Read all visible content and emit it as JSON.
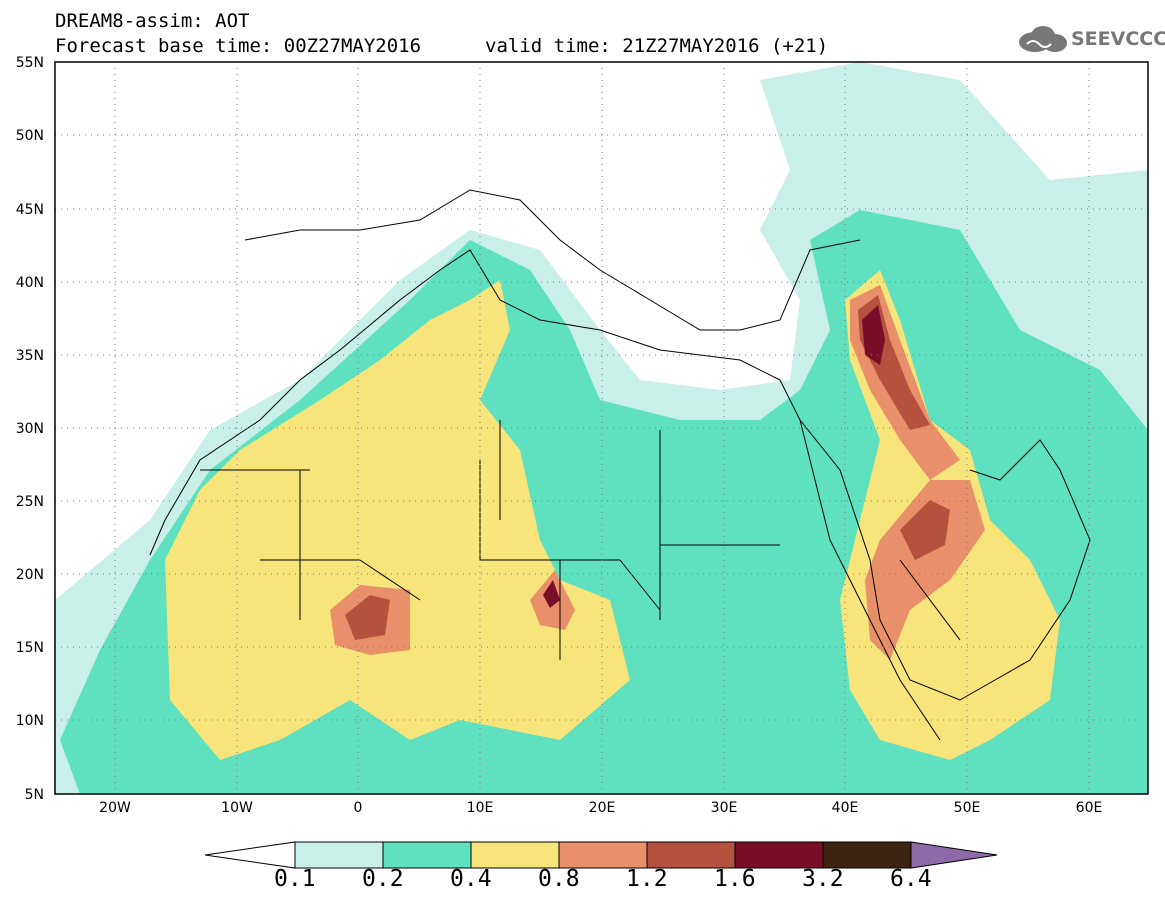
{
  "header": {
    "title": "DREAM8-assim: AOT",
    "base_time": "Forecast base time: 00Z27MAY2016",
    "valid_time": "valid time: 21Z27MAY2016 (+21)"
  },
  "logo": {
    "text": "SEEVCCC",
    "icon": "cloud-icon"
  },
  "map": {
    "lat_ticks": [
      "55N",
      "50N",
      "45N",
      "40N",
      "35N",
      "30N",
      "25N",
      "20N",
      "15N",
      "10N",
      "5N"
    ],
    "lon_ticks": [
      "20W",
      "10W",
      "0",
      "10E",
      "20E",
      "30E",
      "40E",
      "50E",
      "60E"
    ],
    "lat_range": [
      5,
      55
    ],
    "lon_range": [
      -25,
      65
    ],
    "grid": "dotted"
  },
  "legend": {
    "labels": [
      "0.1",
      "0.2",
      "0.4",
      "0.8",
      "1.2",
      "1.6",
      "3.2",
      "6.4"
    ],
    "colors": [
      "#ffffff",
      "#c8efe8",
      "#5fe0be",
      "#f7e47a",
      "#e8906a",
      "#b4513f",
      "#7a0e28",
      "#3c2410",
      "#8e6aa8"
    ]
  },
  "colors": {
    "c1": "#c8efe8",
    "c2": "#5fe0be",
    "c3": "#f7e47a",
    "c4": "#e8906a",
    "c5": "#b4513f",
    "c6": "#7a0e28"
  }
}
